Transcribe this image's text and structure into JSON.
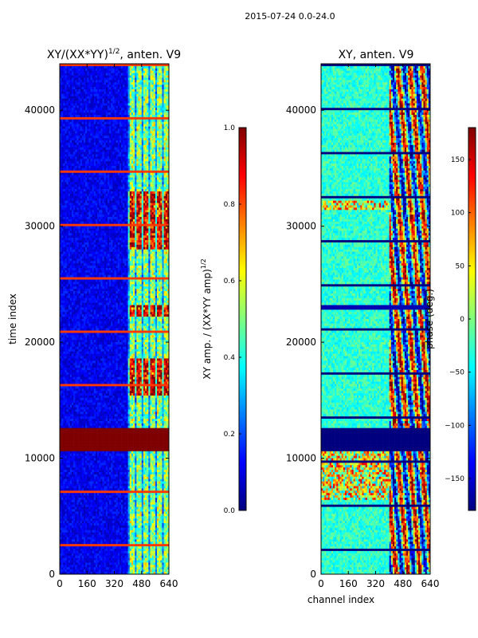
{
  "figure_title": "2015-07-24 0.0-24.0",
  "colors": {
    "jet": [
      "#00007f",
      "#0000ff",
      "#007fff",
      "#00ffff",
      "#7fff7f",
      "#ffff00",
      "#ff7f00",
      "#ff0000",
      "#7f0000"
    ]
  },
  "chart_data": [
    {
      "type": "heatmap",
      "id": "amplitude",
      "title": "XY/(XX*YY)",
      "title_sup": "1/2",
      "title_suffix": ", anten. V9",
      "xlabel": "",
      "ylabel": "time index",
      "xlim": [
        0,
        640
      ],
      "ylim": [
        0,
        44000
      ],
      "xticks": [
        0,
        160,
        320,
        480,
        640
      ],
      "xtick_labels": [
        "0",
        "160",
        "320",
        "480",
        "640"
      ],
      "yticks": [
        0,
        10000,
        20000,
        30000,
        40000
      ],
      "ytick_labels": [
        "0",
        "10000",
        "20000",
        "30000",
        "40000"
      ],
      "colorbar": {
        "label": "XY amp. / (XX*YY amp)",
        "label_sup": "1/2",
        "range": [
          0.0,
          1.0
        ],
        "ticks": [
          0.0,
          0.2,
          0.4,
          0.6,
          0.8,
          1.0
        ],
        "tick_labels": [
          "0.0",
          "0.2",
          "0.4",
          "0.6",
          "0.8",
          "1.0"
        ]
      },
      "features": {
        "flagged_band_time_range": [
          10600,
          12500
        ],
        "active_channel_range": [
          400,
          640
        ],
        "bright_time_ranges": [
          [
            15500,
            18500
          ],
          [
            22200,
            23200
          ],
          [
            28000,
            33000
          ]
        ]
      }
    },
    {
      "type": "heatmap",
      "id": "phase",
      "title": "XY, anten. V9",
      "xlabel": "channel index",
      "ylabel": "",
      "xlim": [
        0,
        640
      ],
      "ylim": [
        0,
        44000
      ],
      "xticks": [
        0,
        160,
        320,
        480,
        640
      ],
      "xtick_labels": [
        "0",
        "160",
        "320",
        "480",
        "640"
      ],
      "yticks": [
        0,
        10000,
        20000,
        30000,
        40000
      ],
      "ytick_labels": [
        "0",
        "10000",
        "20000",
        "30000",
        "40000"
      ],
      "colorbar": {
        "label": "phase (deg.)",
        "range": [
          -180,
          180
        ],
        "ticks": [
          -150,
          -100,
          -50,
          0,
          50,
          100,
          150
        ],
        "tick_labels": [
          "−150",
          "−100",
          "−50",
          "0",
          "50",
          "100",
          "150"
        ]
      },
      "features": {
        "flagged_band_time_range": [
          10600,
          12500
        ],
        "dark_time_range": [
          22800,
          23200
        ],
        "noisy_time_ranges": [
          [
            6500,
            10600
          ],
          [
            31500,
            32200
          ]
        ],
        "active_channel_range": [
          400,
          640
        ]
      }
    }
  ]
}
